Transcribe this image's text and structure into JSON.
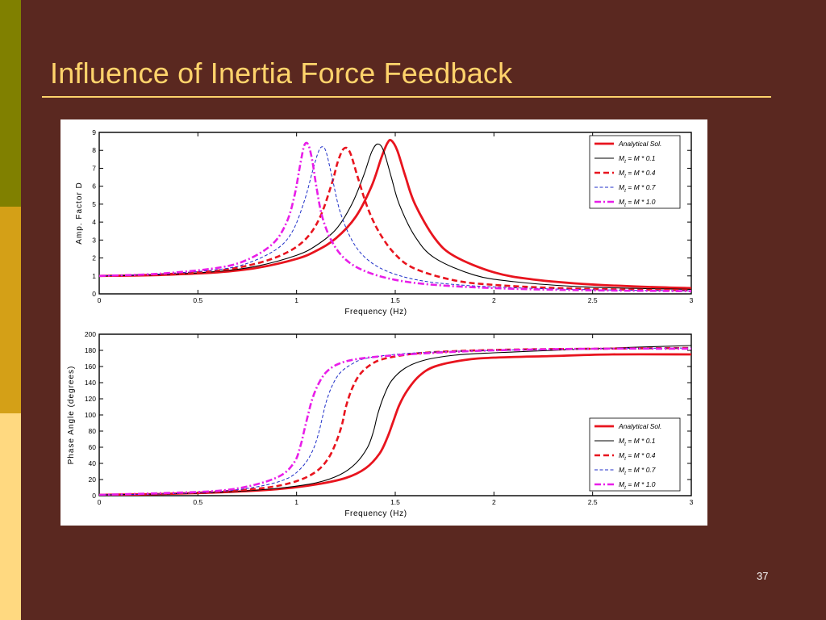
{
  "slide": {
    "title": "Influence of Inertia Force Feedback",
    "page_number": "37",
    "colors": {
      "background": "#5a2820",
      "title": "#ffd36b",
      "accent_strip": [
        "#808000",
        "#d4a017",
        "#ffd980"
      ]
    }
  },
  "chart_data": [
    {
      "type": "line",
      "xlabel": "Frequency (Hz)",
      "ylabel": "Amp. Factor  D",
      "xlim": [
        0,
        3
      ],
      "ylim": [
        0,
        9
      ],
      "xticks": [
        "0",
        "0.5",
        "1",
        "1.5",
        "2",
        "2.5",
        "3"
      ],
      "yticks": [
        "0",
        "1",
        "2",
        "3",
        "4",
        "5",
        "6",
        "7",
        "8",
        "9"
      ],
      "grid": false,
      "legend_position": "top-right",
      "series": [
        {
          "name": "Analytical Sol.",
          "color": "#e8141e",
          "style": "solid-thick",
          "x": [
            0,
            0.3,
            0.6,
            0.8,
            1.0,
            1.1,
            1.2,
            1.3,
            1.38,
            1.43,
            1.46,
            1.48,
            1.51,
            1.55,
            1.6,
            1.7,
            1.8,
            2.0,
            2.2,
            2.5,
            2.8,
            3.0
          ],
          "y": [
            1.0,
            1.05,
            1.2,
            1.45,
            1.95,
            2.4,
            3.1,
            4.3,
            6.0,
            7.6,
            8.4,
            8.55,
            8.0,
            6.6,
            5.0,
            3.1,
            2.1,
            1.2,
            0.8,
            0.52,
            0.38,
            0.32
          ]
        },
        {
          "name": "M_t = M * 0.1",
          "color": "#000000",
          "style": "solid-thin",
          "x": [
            0,
            0.3,
            0.6,
            0.8,
            1.0,
            1.1,
            1.2,
            1.28,
            1.34,
            1.38,
            1.41,
            1.44,
            1.48,
            1.52,
            1.6,
            1.7,
            1.9,
            2.1,
            2.4,
            2.7,
            3.0
          ],
          "y": [
            1.0,
            1.06,
            1.25,
            1.55,
            2.15,
            2.7,
            3.6,
            5.0,
            6.6,
            7.9,
            8.35,
            8.0,
            6.5,
            5.0,
            3.2,
            2.0,
            1.05,
            0.68,
            0.42,
            0.31,
            0.25
          ]
        },
        {
          "name": "M_t = M * 0.4",
          "color": "#e8141e",
          "style": "dashed-thick",
          "x": [
            0,
            0.3,
            0.6,
            0.8,
            0.95,
            1.05,
            1.12,
            1.18,
            1.21,
            1.24,
            1.27,
            1.31,
            1.36,
            1.42,
            1.5,
            1.6,
            1.8,
            2.0,
            2.3,
            2.6,
            3.0
          ],
          "y": [
            1.0,
            1.08,
            1.3,
            1.7,
            2.3,
            3.1,
            4.3,
            6.2,
            7.4,
            8.1,
            7.9,
            6.5,
            4.8,
            3.4,
            2.2,
            1.4,
            0.75,
            0.5,
            0.33,
            0.25,
            0.2
          ]
        },
        {
          "name": "M_t = M * 0.7",
          "color": "#1f2fc8",
          "style": "dashed-thin",
          "x": [
            0,
            0.3,
            0.6,
            0.75,
            0.9,
            0.98,
            1.04,
            1.08,
            1.11,
            1.13,
            1.15,
            1.18,
            1.22,
            1.28,
            1.35,
            1.45,
            1.6,
            1.8,
            2.1,
            2.5,
            3.0
          ],
          "y": [
            1.0,
            1.1,
            1.35,
            1.7,
            2.5,
            3.5,
            5.2,
            6.8,
            7.9,
            8.2,
            7.9,
            6.5,
            4.6,
            3.0,
            2.0,
            1.3,
            0.8,
            0.52,
            0.34,
            0.23,
            0.17
          ]
        },
        {
          "name": "M_t = M * 1.0",
          "color": "#e81ee8",
          "style": "dashdot-thick",
          "x": [
            0,
            0.3,
            0.6,
            0.75,
            0.88,
            0.95,
            0.99,
            1.02,
            1.04,
            1.06,
            1.08,
            1.1,
            1.13,
            1.18,
            1.25,
            1.35,
            1.5,
            1.7,
            2.0,
            2.4,
            3.0
          ],
          "y": [
            1.0,
            1.12,
            1.45,
            1.9,
            2.8,
            4.0,
            5.5,
            7.3,
            8.3,
            8.3,
            7.4,
            6.0,
            4.3,
            2.9,
            1.9,
            1.25,
            0.78,
            0.5,
            0.32,
            0.21,
            0.15
          ]
        }
      ]
    },
    {
      "type": "line",
      "xlabel": "Frequency (Hz)",
      "ylabel": "Phase Angle (degrees)",
      "xlim": [
        0,
        3
      ],
      "ylim": [
        0,
        200
      ],
      "xticks": [
        "0",
        "0.5",
        "1",
        "1.5",
        "2",
        "2.5",
        "3"
      ],
      "yticks": [
        "0",
        "20",
        "40",
        "60",
        "80",
        "100",
        "120",
        "140",
        "160",
        "180",
        "200"
      ],
      "grid": false,
      "legend_position": "bottom-right",
      "series": [
        {
          "name": "Analytical Sol.",
          "color": "#e8141e",
          "style": "solid-thick",
          "x": [
            0,
            0.3,
            0.6,
            0.9,
            1.1,
            1.25,
            1.35,
            1.42,
            1.46,
            1.49,
            1.52,
            1.56,
            1.62,
            1.7,
            1.85,
            2.0,
            2.3,
            2.6,
            3.0
          ],
          "y": [
            1,
            2,
            4,
            8,
            14,
            22,
            34,
            52,
            72,
            92,
            112,
            130,
            148,
            160,
            168,
            171,
            173,
            175,
            175
          ]
        },
        {
          "name": "M_t = M * 0.1",
          "color": "#000000",
          "style": "solid-thin",
          "x": [
            0,
            0.3,
            0.6,
            0.9,
            1.1,
            1.22,
            1.3,
            1.36,
            1.39,
            1.41,
            1.44,
            1.48,
            1.55,
            1.65,
            1.8,
            2.0,
            2.3,
            2.6,
            3.0
          ],
          "y": [
            1,
            2,
            4,
            9,
            16,
            26,
            40,
            60,
            80,
            100,
            122,
            142,
            158,
            168,
            174,
            177,
            180,
            183,
            186
          ]
        },
        {
          "name": "M_t = M * 0.4",
          "color": "#e8141e",
          "style": "dashed-thick",
          "x": [
            0,
            0.3,
            0.6,
            0.85,
            1.0,
            1.1,
            1.16,
            1.2,
            1.23,
            1.25,
            1.28,
            1.32,
            1.38,
            1.45,
            1.6,
            1.8,
            2.1,
            2.5,
            3.0
          ],
          "y": [
            1,
            2,
            5,
            10,
            18,
            30,
            46,
            66,
            88,
            110,
            132,
            150,
            163,
            170,
            176,
            179,
            181,
            182,
            183
          ]
        },
        {
          "name": "M_t = M * 0.7",
          "color": "#1f2fc8",
          "style": "dashed-thin",
          "x": [
            0,
            0.3,
            0.6,
            0.8,
            0.95,
            1.03,
            1.08,
            1.11,
            1.13,
            1.15,
            1.18,
            1.22,
            1.28,
            1.35,
            1.5,
            1.7,
            2.0,
            2.5,
            3.0
          ],
          "y": [
            1,
            2,
            5,
            11,
            21,
            36,
            55,
            76,
            96,
            116,
            136,
            152,
            163,
            170,
            175,
            178,
            180,
            182,
            183
          ]
        },
        {
          "name": "M_t = M * 1.0",
          "color": "#e81ee8",
          "style": "dashdot-thick",
          "x": [
            0,
            0.3,
            0.6,
            0.78,
            0.92,
            0.99,
            1.02,
            1.04,
            1.06,
            1.08,
            1.11,
            1.15,
            1.21,
            1.3,
            1.45,
            1.7,
            2.0,
            2.5,
            3.0
          ],
          "y": [
            1,
            3,
            6,
            13,
            25,
            42,
            62,
            82,
            102,
            120,
            138,
            153,
            163,
            169,
            173,
            177,
            180,
            182,
            182
          ]
        }
      ]
    }
  ]
}
